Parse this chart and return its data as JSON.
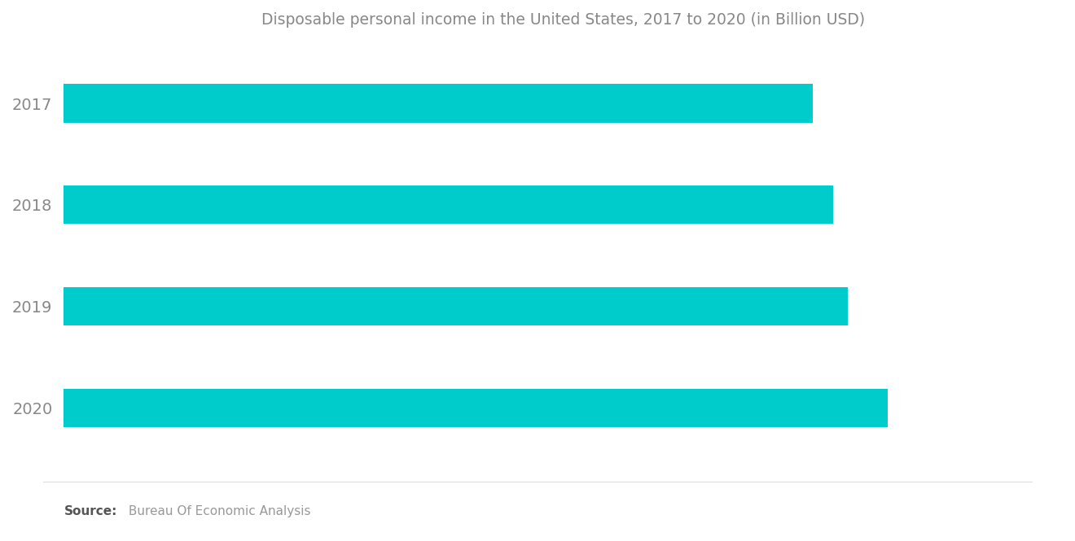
{
  "title": "Disposable personal income in the United States, 2017 to 2020 (in Billion USD)",
  "title_fontsize": 13.5,
  "title_color": "#888888",
  "categories": [
    "2017",
    "2018",
    "2019",
    "2020"
  ],
  "values": [
    15.0,
    15.4,
    15.7,
    16.5
  ],
  "bar_color": "#00CCCC",
  "xlim": [
    0,
    20
  ],
  "background_color": "#ffffff",
  "source_bold": "Source:",
  "source_text": " Bureau Of Economic Analysis",
  "source_fontsize": 11,
  "label_color": "#888888",
  "label_fontsize": 14,
  "bar_height": 0.38
}
